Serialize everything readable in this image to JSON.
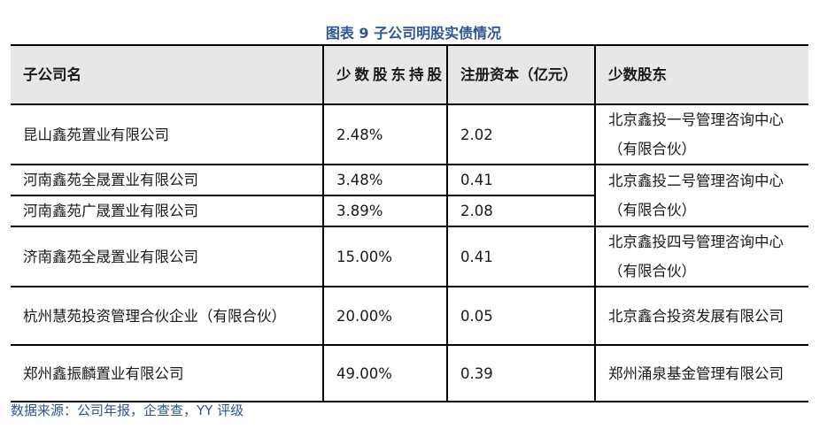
{
  "title": "图表 9 子公司明股实债情况",
  "headers": [
    "子公司名",
    "少数股东持股",
    "注册资本（亿元）",
    "少数股东"
  ],
  "rows": [
    {
      "name": "昆山鑫苑置业有限公司",
      "pct": "2.48%",
      "capital": "2.02",
      "holder": "北京鑫投一号管理咨询中心（有限合伙）"
    },
    {
      "name": "河南鑫苑全晟置业有限公司",
      "pct": "3.48%",
      "capital": "0.41",
      "holder": "北京鑫投二号管理咨询中心（有限合伙）"
    },
    {
      "name": "河南鑫苑广晟置业有限公司",
      "pct": "3.89%",
      "capital": "2.08"
    },
    {
      "name": "济南鑫苑全晟置业有限公司",
      "pct": "15.00%",
      "capital": "0.41",
      "holder": "北京鑫投四号管理咨询中心（有限合伙）"
    },
    {
      "name": "杭州慧苑投资管理合伙企业（有限合伙）",
      "pct": "20.00%",
      "capital": "0.05",
      "holder": "北京鑫合投资发展有限公司"
    },
    {
      "name": "郑州鑫振麟置业有限公司",
      "pct": "49.00%",
      "capital": "0.39",
      "holder": "郑州涌泉基金管理有限公司"
    }
  ],
  "source": "数据来源：公司年报，企查查，YY 评级"
}
